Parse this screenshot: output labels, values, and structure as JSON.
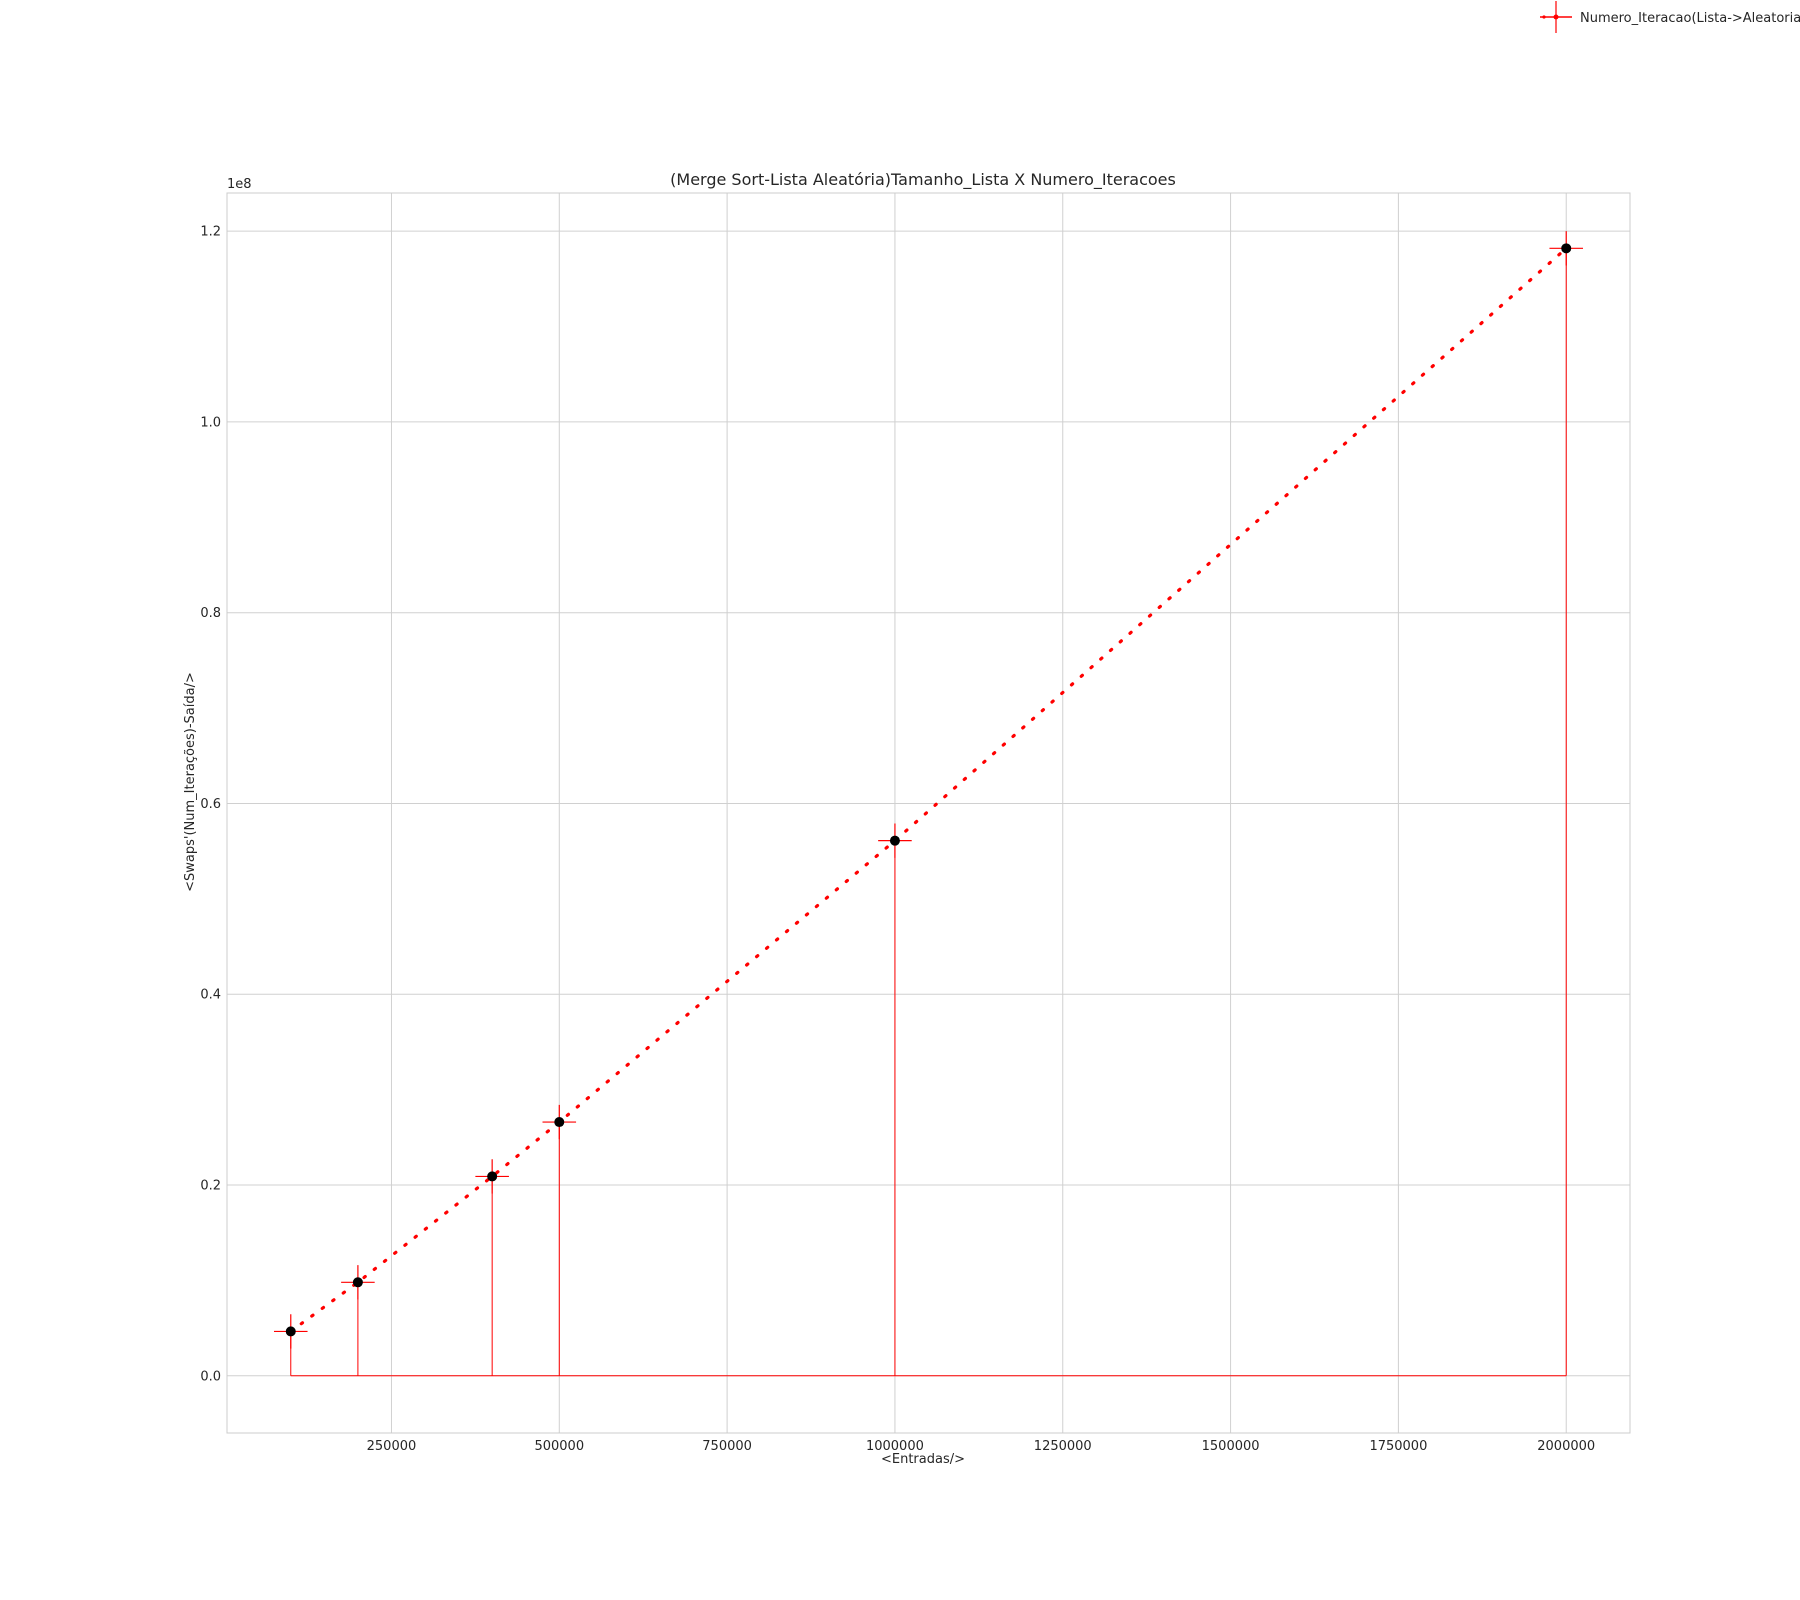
{
  "chart_data": {
    "type": "line",
    "title": "(Merge Sort-Lista Aleatória)Tamanho_Lista X Numero_Iteracoes",
    "xlabel": "<Entradas/>",
    "ylabel": "<Swaps'(Num_Iterações)-Saída/>",
    "y_offset_text": "1e8",
    "xlim": [
      5000,
      2095000
    ],
    "ylim": [
      -6000000,
      124000000
    ],
    "x_ticks": [
      250000,
      500000,
      750000,
      1000000,
      1250000,
      1500000,
      1750000,
      2000000
    ],
    "x_tick_labels": [
      "250000",
      "500000",
      "750000",
      "1000000",
      "1250000",
      "1500000",
      "1750000",
      "2000000"
    ],
    "y_ticks": [
      0,
      20000000,
      40000000,
      60000000,
      80000000,
      100000000,
      120000000
    ],
    "y_tick_labels": [
      "0.0",
      "0.2",
      "0.4",
      "0.6",
      "0.8",
      "1.0",
      "1.2"
    ],
    "grid": true,
    "legend_position": "top-right",
    "colors": {
      "series": "#ff0000",
      "markers": "#000000",
      "grid": "#d0d0d0"
    },
    "series": [
      {
        "name": "Numero_Iteracao(Lista->Aleatoria)",
        "x": [
          100000,
          200000,
          400000,
          500000,
          1000000,
          2000000
        ],
        "y": [
          4650000,
          9800000,
          20900000,
          26600000,
          56100000,
          118200000
        ],
        "xerr": 25000,
        "yerr": 1800000,
        "line_style": "dotted",
        "stems": true
      }
    ]
  }
}
